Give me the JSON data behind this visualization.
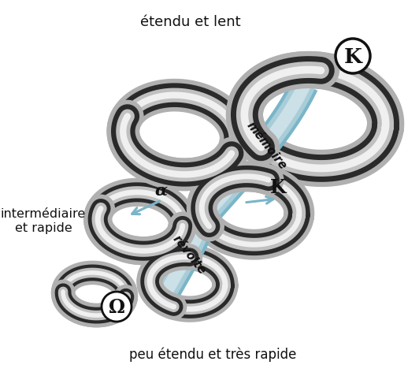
{
  "label_top": "étendu et lent",
  "label_middle_left_1": "intermédiaire",
  "label_middle_left_2": "et rapide",
  "label_bottom": "peu étendu et très rapide",
  "label_memoire": "mémoire",
  "label_revolte": "révolte",
  "label_K_top": "K",
  "label_K_mid": "K",
  "label_alpha": "α",
  "label_omega": "Ω",
  "bg_color": "#ffffff",
  "text_color": "#111111",
  "circle_color": "#ffffff",
  "circle_edge": "#111111",
  "c_darkest": "#1a1a1a",
  "c_dark": "#4a4a4a",
  "c_mid": "#909090",
  "c_light": "#c8c8c8",
  "c_vlight": "#ebebeb",
  "c_white_hl": "#f5f5f5",
  "c_blue_dark": "#7ab5c8",
  "c_blue_mid": "#a8cdd8",
  "c_blue_light": "#cce0e8",
  "c_shadow": "#cccccc"
}
